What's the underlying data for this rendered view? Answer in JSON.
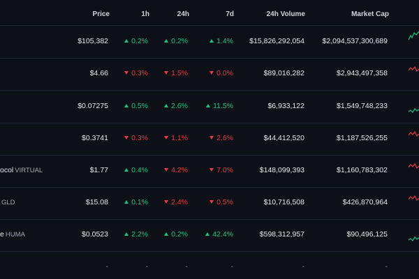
{
  "columns": {
    "price": "Price",
    "h1": "1h",
    "h24": "24h",
    "d7": "7d",
    "volume": "24h Volume",
    "market_cap": "Market Cap"
  },
  "rows": [
    {
      "name": "",
      "symbol": "",
      "price": "$105,382",
      "h1": {
        "dir": "up",
        "value": "0.2%"
      },
      "h24": {
        "dir": "up",
        "value": "0.2%"
      },
      "d7": {
        "dir": "up",
        "value": "1.4%"
      },
      "volume": "$15,826,292,054",
      "market_cap": "$2,094,537,300,689",
      "spark": "up"
    },
    {
      "name": "",
      "symbol": "",
      "price": "$4.66",
      "h1": {
        "dir": "down",
        "value": "0.3%"
      },
      "h24": {
        "dir": "down",
        "value": "1.5%"
      },
      "d7": {
        "dir": "down",
        "value": "0.0%"
      },
      "volume": "$89,016,282",
      "market_cap": "$2,943,497,358",
      "spark": "down"
    },
    {
      "name": "",
      "symbol": "",
      "price": "$0.07275",
      "h1": {
        "dir": "up",
        "value": "0.5%"
      },
      "h24": {
        "dir": "up",
        "value": "2.6%"
      },
      "d7": {
        "dir": "up",
        "value": "11.5%"
      },
      "volume": "$6,933,122",
      "market_cap": "$1,549,748,233",
      "spark": "up"
    },
    {
      "name": "",
      "symbol": "",
      "price": "$0.3741",
      "h1": {
        "dir": "down",
        "value": "0.3%"
      },
      "h24": {
        "dir": "down",
        "value": "1.1%"
      },
      "d7": {
        "dir": "down",
        "value": "2.6%"
      },
      "volume": "$44,412,520",
      "market_cap": "$1,187,526,255",
      "spark": "down"
    },
    {
      "name": "ocol",
      "symbol": "VIRTUAL",
      "price": "$1.77",
      "h1": {
        "dir": "up",
        "value": "0.4%"
      },
      "h24": {
        "dir": "down",
        "value": "4.2%"
      },
      "d7": {
        "dir": "down",
        "value": "7.0%"
      },
      "volume": "$148,099,393",
      "market_cap": "$1,160,783,302",
      "spark": "down"
    },
    {
      "name": "",
      "symbol": "GLD",
      "price": "$15.08",
      "h1": {
        "dir": "up",
        "value": "0.1%"
      },
      "h24": {
        "dir": "down",
        "value": "2.4%"
      },
      "d7": {
        "dir": "down",
        "value": "0.5%"
      },
      "volume": "$10,716,508",
      "market_cap": "$426,870,964",
      "spark": "down"
    },
    {
      "name": "e",
      "symbol": "HUMA",
      "price": "$0.0523",
      "h1": {
        "dir": "up",
        "value": "2.2%"
      },
      "h24": {
        "dir": "up",
        "value": "0.2%"
      },
      "d7": {
        "dir": "up",
        "value": "42.4%"
      },
      "volume": "$598,312,957",
      "market_cap": "$90,496,125",
      "spark": "up"
    },
    {
      "name": "",
      "symbol": "",
      "price": "-",
      "h1": {
        "dir": "none",
        "value": "-"
      },
      "h24": {
        "dir": "none",
        "value": "-"
      },
      "d7": {
        "dir": "none",
        "value": "-"
      },
      "volume": "-",
      "market_cap": "-",
      "spark": "none"
    }
  ],
  "colors": {
    "up": "#16c784",
    "down": "#ea3943",
    "background": "#0d1117",
    "divider": "#222833"
  }
}
